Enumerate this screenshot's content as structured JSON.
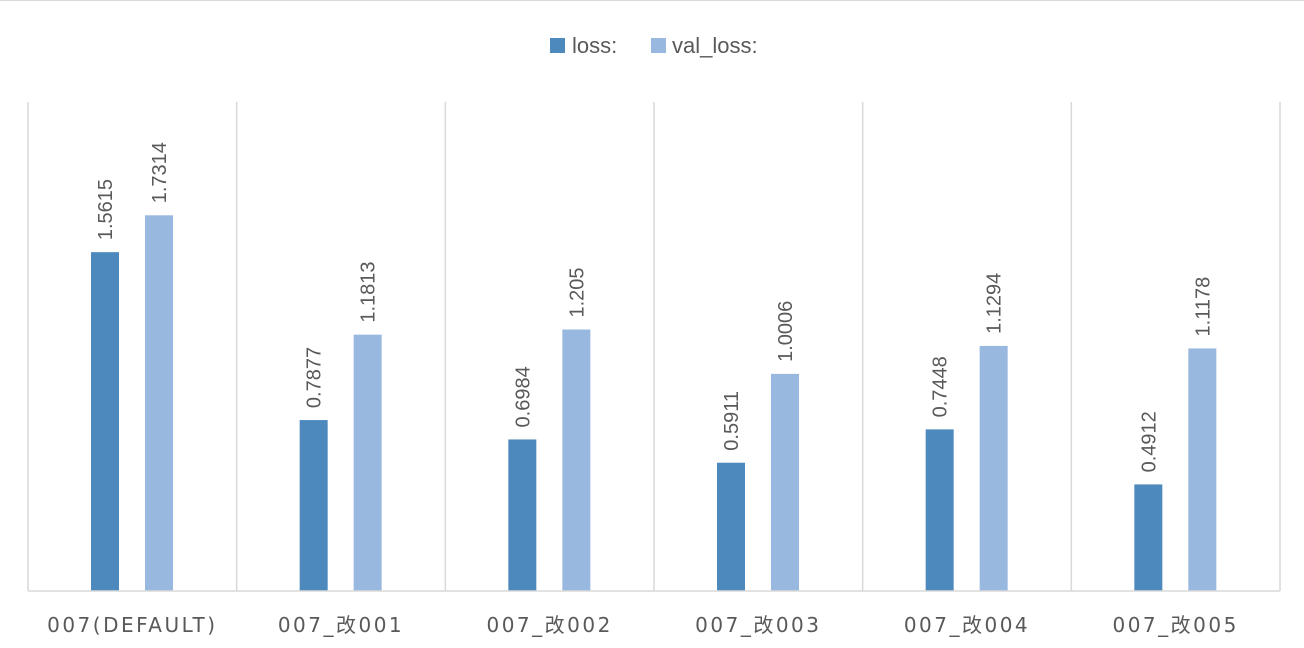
{
  "chart_data": {
    "type": "bar",
    "categories": [
      "007(DEFAULT)",
      "007_改001",
      "007_改002",
      "007_改003",
      "007_改004",
      "007_改005"
    ],
    "series": [
      {
        "name": "loss:",
        "color": "#4e89bd",
        "values": [
          1.5615,
          0.7877,
          0.6984,
          0.5911,
          0.7448,
          0.4912
        ],
        "labels": [
          "1.5615",
          "0.7877",
          "0.6984",
          "0.5911",
          "0.7448",
          "0.4912"
        ]
      },
      {
        "name": "val_loss:",
        "color": "#98b8df",
        "values": [
          1.7314,
          1.1813,
          1.205,
          1.0006,
          1.1294,
          1.1178
        ],
        "labels": [
          "1.7314",
          "1.1813",
          "1.205",
          "1.0006",
          "1.1294",
          "1.1178"
        ]
      }
    ],
    "ylim": [
      0,
      2
    ],
    "legend_position": "top-center",
    "grid": "vertical separators between categories"
  }
}
